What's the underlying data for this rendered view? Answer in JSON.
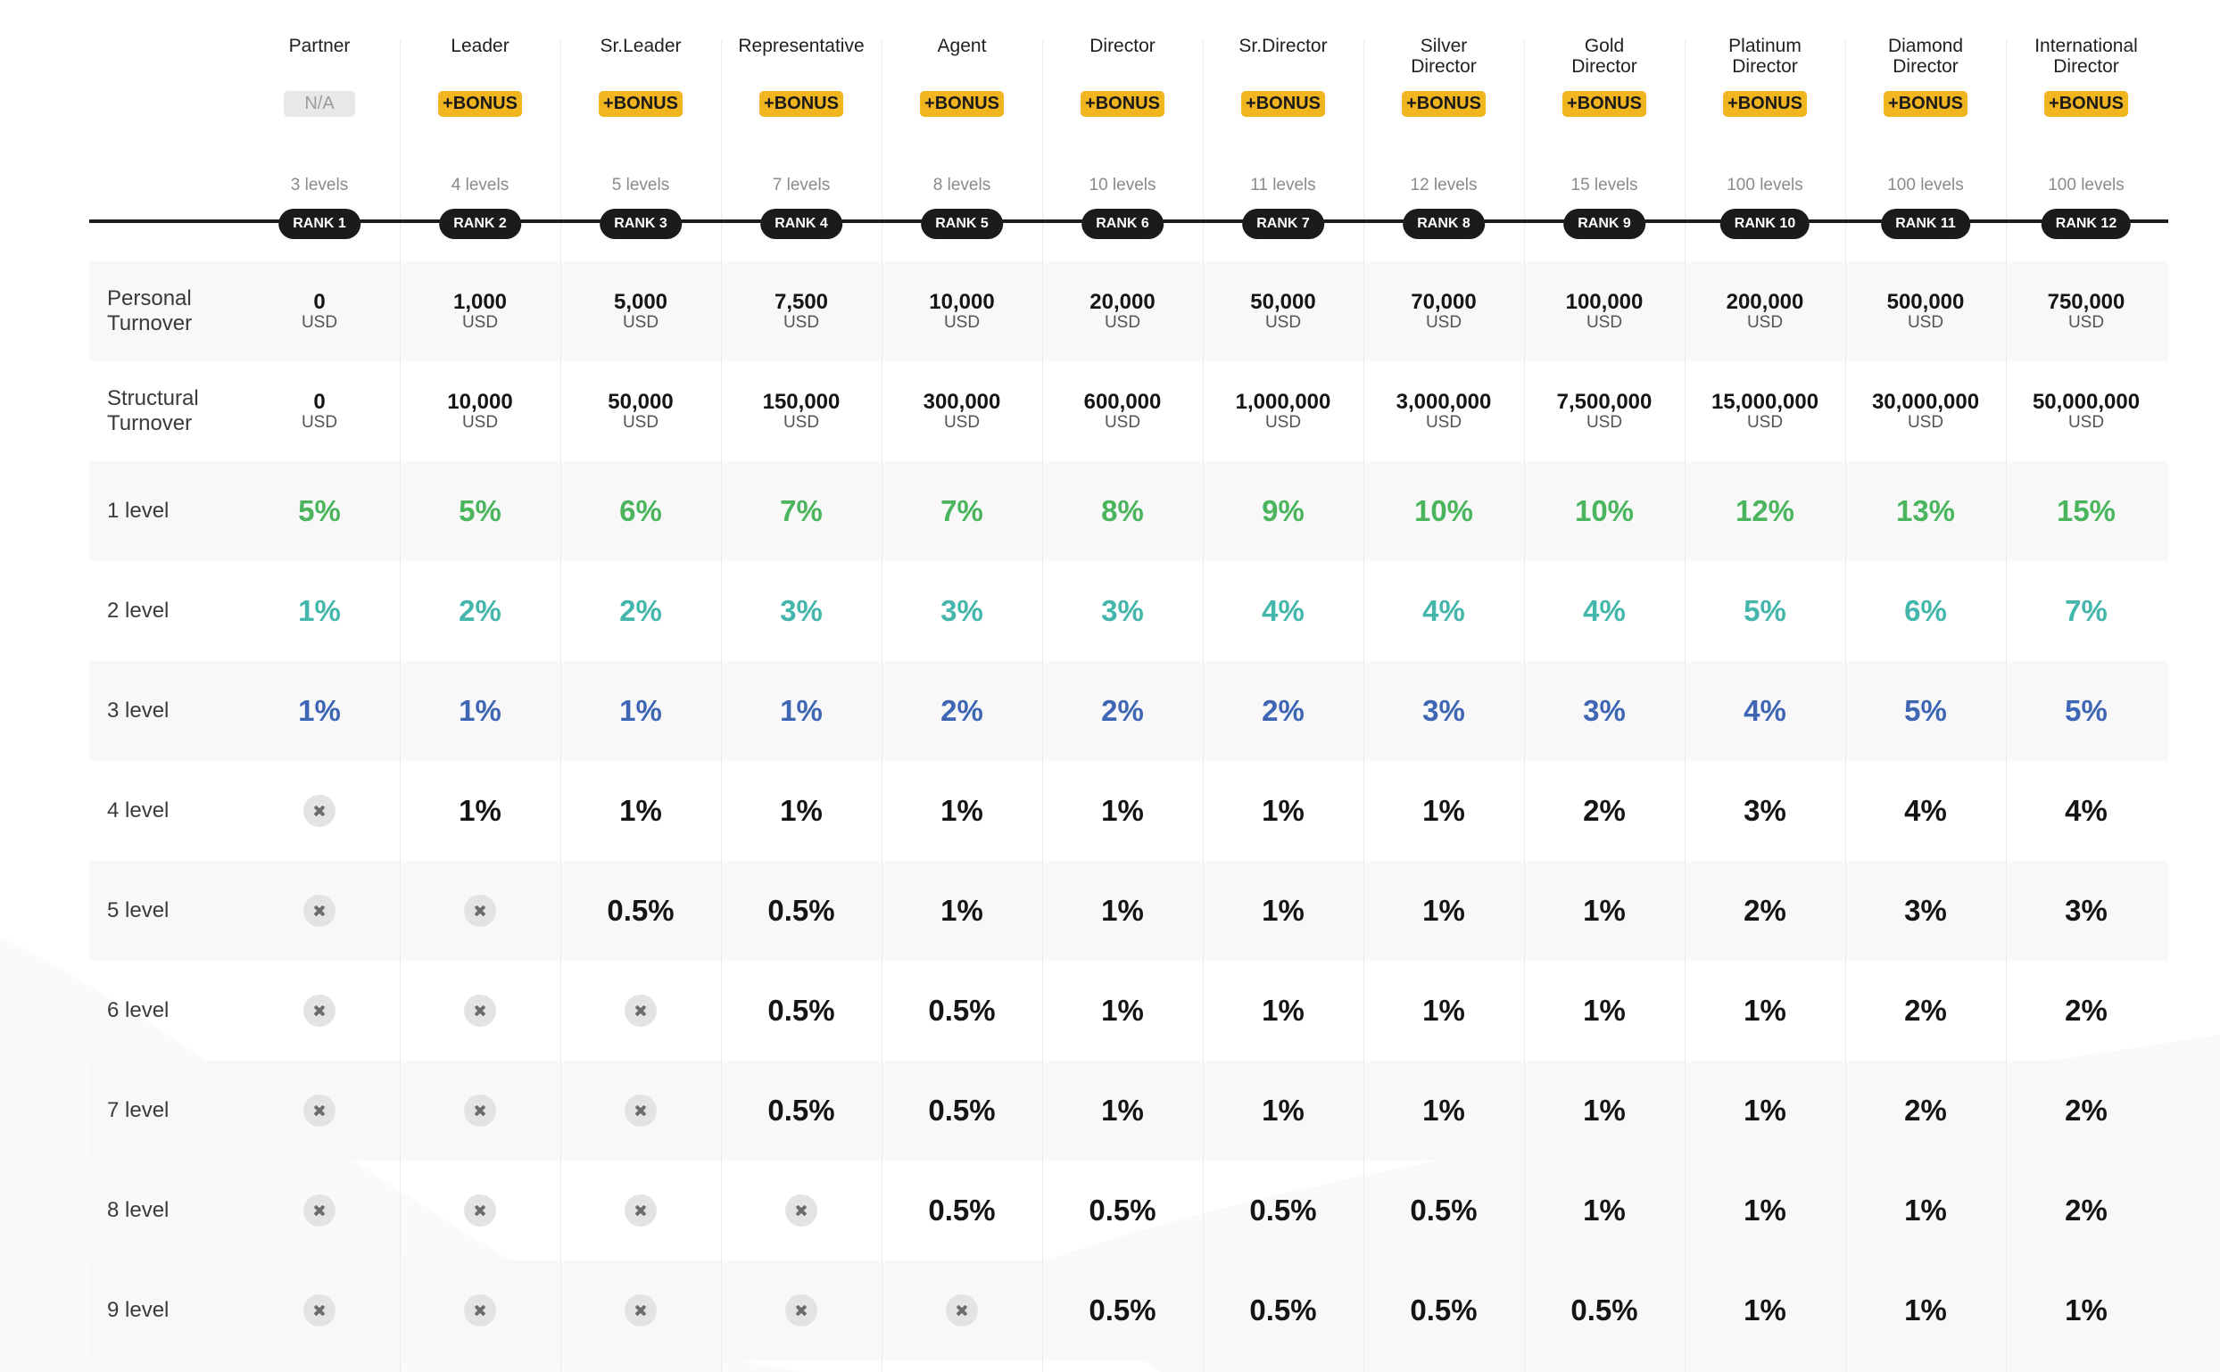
{
  "columns": [
    {
      "name": "Partner",
      "badge": "N/A",
      "badge_type": "na",
      "levels": "3 levels",
      "rank": "RANK 1"
    },
    {
      "name": "Leader",
      "badge": "+BONUS",
      "badge_type": "bonus",
      "levels": "4 levels",
      "rank": "RANK 2"
    },
    {
      "name": "Sr.Leader",
      "badge": "+BONUS",
      "badge_type": "bonus",
      "levels": "5 levels",
      "rank": "RANK 3"
    },
    {
      "name": "Representative",
      "badge": "+BONUS",
      "badge_type": "bonus",
      "levels": "7 levels",
      "rank": "RANK 4"
    },
    {
      "name": "Agent",
      "badge": "+BONUS",
      "badge_type": "bonus",
      "levels": "8 levels",
      "rank": "RANK 5"
    },
    {
      "name": "Director",
      "badge": "+BONUS",
      "badge_type": "bonus",
      "levels": "10 levels",
      "rank": "RANK 6"
    },
    {
      "name": "Sr.Director",
      "badge": "+BONUS",
      "badge_type": "bonus",
      "levels": "11 levels",
      "rank": "RANK 7"
    },
    {
      "name": "Silver\nDirector",
      "badge": "+BONUS",
      "badge_type": "bonus",
      "levels": "12 levels",
      "rank": "RANK 8"
    },
    {
      "name": "Gold\nDirector",
      "badge": "+BONUS",
      "badge_type": "bonus",
      "levels": "15 levels",
      "rank": "RANK 9"
    },
    {
      "name": "Platinum\nDirector",
      "badge": "+BONUS",
      "badge_type": "bonus",
      "levels": "100 levels",
      "rank": "RANK 10"
    },
    {
      "name": "Diamond\nDirector",
      "badge": "+BONUS",
      "badge_type": "bonus",
      "levels": "100 levels",
      "rank": "RANK 11"
    },
    {
      "name": "International\nDirector",
      "badge": "+BONUS",
      "badge_type": "bonus",
      "levels": "100 levels",
      "rank": "RANK 12"
    }
  ],
  "unit": "USD",
  "turnover_rows": [
    {
      "label": "Personal\nTurnover",
      "values": [
        "0",
        "1,000",
        "5,000",
        "7,500",
        "10,000",
        "20,000",
        "50,000",
        "70,000",
        "100,000",
        "200,000",
        "500,000",
        "750,000"
      ]
    },
    {
      "label": "Structural\nTurnover",
      "values": [
        "0",
        "10,000",
        "50,000",
        "150,000",
        "300,000",
        "600,000",
        "1,000,000",
        "3,000,000",
        "7,500,000",
        "15,000,000",
        "30,000,000",
        "50,000,000"
      ]
    }
  ],
  "level_rows": [
    {
      "label": "1 level",
      "color": "green",
      "values": [
        "5%",
        "5%",
        "6%",
        "7%",
        "7%",
        "8%",
        "9%",
        "10%",
        "10%",
        "12%",
        "13%",
        "15%"
      ]
    },
    {
      "label": "2 level",
      "color": "teal",
      "values": [
        "1%",
        "2%",
        "2%",
        "3%",
        "3%",
        "3%",
        "4%",
        "4%",
        "4%",
        "5%",
        "6%",
        "7%"
      ]
    },
    {
      "label": "3 level",
      "color": "blue",
      "values": [
        "1%",
        "1%",
        "1%",
        "1%",
        "2%",
        "2%",
        "2%",
        "3%",
        "3%",
        "4%",
        "5%",
        "5%"
      ]
    },
    {
      "label": "4 level",
      "color": "black",
      "values": [
        null,
        "1%",
        "1%",
        "1%",
        "1%",
        "1%",
        "1%",
        "1%",
        "2%",
        "3%",
        "4%",
        "4%"
      ]
    },
    {
      "label": "5 level",
      "color": "black",
      "values": [
        null,
        null,
        "0.5%",
        "0.5%",
        "1%",
        "1%",
        "1%",
        "1%",
        "1%",
        "2%",
        "3%",
        "3%"
      ]
    },
    {
      "label": "6 level",
      "color": "black",
      "values": [
        null,
        null,
        null,
        "0.5%",
        "0.5%",
        "1%",
        "1%",
        "1%",
        "1%",
        "1%",
        "2%",
        "2%"
      ]
    },
    {
      "label": "7 level",
      "color": "black",
      "values": [
        null,
        null,
        null,
        "0.5%",
        "0.5%",
        "1%",
        "1%",
        "1%",
        "1%",
        "1%",
        "2%",
        "2%"
      ]
    },
    {
      "label": "8 level",
      "color": "black",
      "values": [
        null,
        null,
        null,
        null,
        "0.5%",
        "0.5%",
        "0.5%",
        "0.5%",
        "1%",
        "1%",
        "1%",
        "2%"
      ]
    },
    {
      "label": "9 level",
      "color": "black",
      "values": [
        null,
        null,
        null,
        null,
        null,
        "0.5%",
        "0.5%",
        "0.5%",
        "0.5%",
        "1%",
        "1%",
        "1%"
      ]
    }
  ],
  "unavailable_icon": "close-x-icon",
  "colors": {
    "level1": "#4bb55e",
    "level2": "#45b6ac",
    "level3": "#3f66b4",
    "deeper_levels": "#141414",
    "bonus_badge": "#f1b520",
    "rank_pill": "#1b1b1b"
  }
}
